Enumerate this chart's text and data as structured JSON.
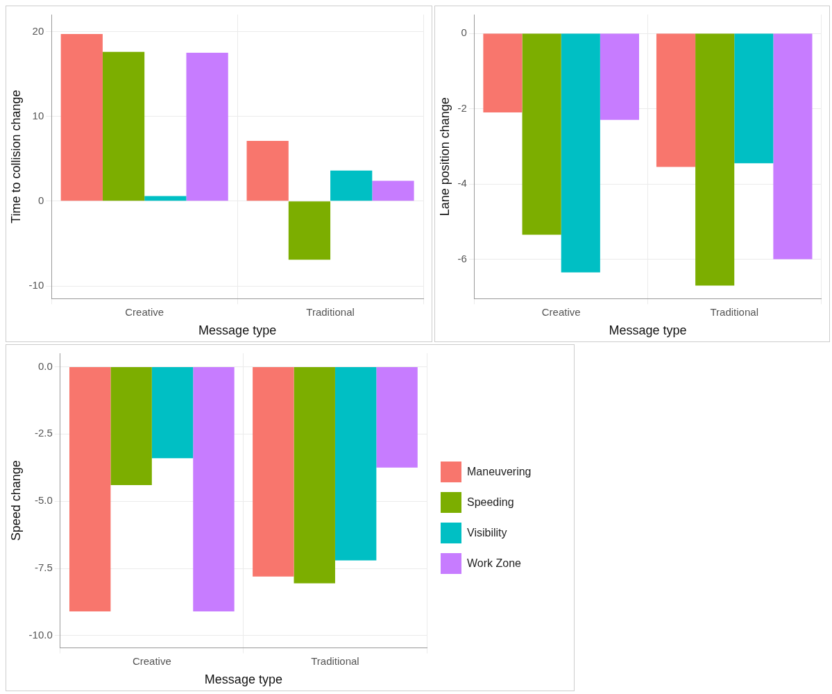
{
  "chart_data": [
    {
      "type": "bar",
      "xlabel": "Message type",
      "ylabel": "Time to collision change",
      "categories": [
        "Creative",
        "Traditional"
      ],
      "ylim": [
        -11.5,
        22
      ],
      "yticks": [
        -10,
        0,
        10,
        20
      ],
      "grid": true,
      "legend": false,
      "series": [
        {
          "color": "#f8766d",
          "values": [
            19.7,
            7.1
          ]
        },
        {
          "color": "#7cae00",
          "values": [
            17.6,
            -6.9
          ]
        },
        {
          "color": "#00bfc4",
          "values": [
            0.6,
            3.6
          ]
        },
        {
          "color": "#c77cff",
          "values": [
            17.5,
            2.4
          ]
        }
      ]
    },
    {
      "type": "bar",
      "xlabel": "Message type",
      "ylabel": "Lane position change",
      "categories": [
        "Creative",
        "Traditional"
      ],
      "ylim": [
        -7.05,
        0.5
      ],
      "yticks": [
        -6,
        -4,
        -2,
        0
      ],
      "grid": true,
      "legend": false,
      "series": [
        {
          "color": "#f8766d",
          "values": [
            -2.1,
            -3.55
          ]
        },
        {
          "color": "#7cae00",
          "values": [
            -5.35,
            -6.7
          ]
        },
        {
          "color": "#00bfc4",
          "values": [
            -6.35,
            -3.45
          ]
        },
        {
          "color": "#c77cff",
          "values": [
            -2.3,
            -6.0
          ]
        }
      ]
    },
    {
      "type": "bar",
      "xlabel": "Message type",
      "ylabel": "Speed change",
      "categories": [
        "Creative",
        "Traditional"
      ],
      "ylim": [
        -10.45,
        0.5
      ],
      "yticks": [
        {
          "value": -10,
          "label": "-10.0"
        },
        {
          "value": -7.5,
          "label": "-7.5"
        },
        {
          "value": -5,
          "label": "-5.0"
        },
        {
          "value": -2.5,
          "label": "-2.5"
        },
        {
          "value": 0,
          "label": "0.0"
        }
      ],
      "grid": true,
      "legend": "right",
      "series": [
        {
          "name": "Maneuvering",
          "color": "#f8766d",
          "values": [
            -9.1,
            -7.8
          ]
        },
        {
          "name": "Speeding",
          "color": "#7cae00",
          "values": [
            -4.4,
            -8.05
          ]
        },
        {
          "name": "Visibility",
          "color": "#00bfc4",
          "values": [
            -3.4,
            -7.2
          ]
        },
        {
          "name": "Work Zone",
          "color": "#c77cff",
          "values": [
            -9.1,
            -3.75
          ]
        }
      ]
    }
  ]
}
